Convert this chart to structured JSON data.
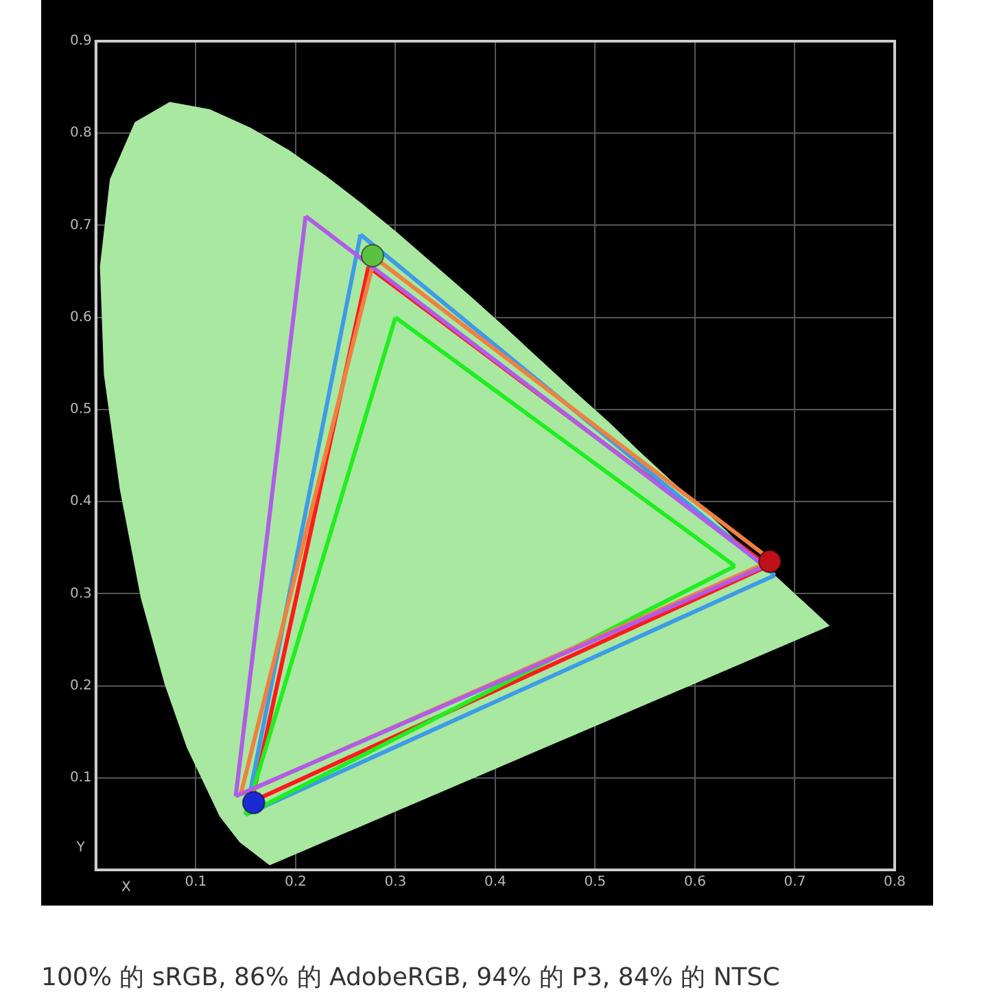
{
  "chart_data": {
    "type": "line",
    "xlabel": "X",
    "ylabel": "Y",
    "xlim": [
      0,
      0.8
    ],
    "ylim": [
      0,
      0.9
    ],
    "xticks": [
      0.1,
      0.2,
      0.3,
      0.4,
      0.5,
      0.6,
      0.7,
      0.8
    ],
    "yticks": [
      0.1,
      0.2,
      0.3,
      0.4,
      0.5,
      0.6,
      0.7,
      0.8,
      0.9
    ],
    "grid": true,
    "marker": "none",
    "line_style": "solid",
    "series": [
      {
        "type": "area",
        "color": "#a8e8a0",
        "x": [
          0.174,
          0.144,
          0.124,
          0.091,
          0.069,
          0.045,
          0.024,
          0.008,
          0.004,
          0.014,
          0.039,
          0.074,
          0.114,
          0.155,
          0.193,
          0.23,
          0.266,
          0.302,
          0.337,
          0.373,
          0.409,
          0.444,
          0.479,
          0.513,
          0.545,
          0.575,
          0.603,
          0.627,
          0.648,
          0.666,
          0.68,
          0.692,
          0.701,
          0.708,
          0.714,
          0.735,
          0.174
        ],
        "values": [
          0.005,
          0.03,
          0.058,
          0.133,
          0.201,
          0.295,
          0.413,
          0.538,
          0.655,
          0.75,
          0.812,
          0.834,
          0.826,
          0.806,
          0.782,
          0.754,
          0.724,
          0.692,
          0.659,
          0.625,
          0.59,
          0.555,
          0.52,
          0.487,
          0.454,
          0.424,
          0.397,
          0.373,
          0.351,
          0.334,
          0.32,
          0.308,
          0.299,
          0.292,
          0.286,
          0.265,
          0.005
        ]
      },
      {
        "color": "#b05ce8",
        "x": [
          0.14,
          0.21
        ],
        "values": [
          0.08,
          0.71
        ]
      },
      {
        "color": "#b05ce8",
        "x": [
          0.21,
          0.67
        ],
        "values": [
          0.71,
          0.33
        ]
      },
      {
        "color": "#b05ce8",
        "x": [
          0.14,
          0.67
        ],
        "values": [
          0.08,
          0.33
        ]
      },
      {
        "color": "#f08040",
        "x": [
          0.145,
          0.279
        ],
        "values": [
          0.082,
          0.665
        ]
      },
      {
        "color": "#f08040",
        "x": [
          0.279,
          0.677
        ],
        "values": [
          0.665,
          0.336
        ]
      },
      {
        "color": "#f08040",
        "x": [
          0.145,
          0.677
        ],
        "values": [
          0.082,
          0.336
        ]
      },
      {
        "color": "#20ee20",
        "x": [
          0.15,
          0.3
        ],
        "values": [
          0.06,
          0.6
        ]
      },
      {
        "color": "#20ee20",
        "x": [
          0.3,
          0.64
        ],
        "values": [
          0.6,
          0.33
        ]
      },
      {
        "color": "#20ee20",
        "x": [
          0.15,
          0.64
        ],
        "values": [
          0.06,
          0.33
        ]
      },
      {
        "color": "#3d9be8",
        "x": [
          0.15,
          0.265
        ],
        "values": [
          0.06,
          0.69
        ]
      },
      {
        "color": "#3d9be8",
        "x": [
          0.265,
          0.68
        ],
        "values": [
          0.69,
          0.32
        ]
      },
      {
        "color": "#3d9be8",
        "x": [
          0.15,
          0.68
        ],
        "values": [
          0.06,
          0.32
        ]
      },
      {
        "color": "#ff1a1a",
        "x": [
          0.156,
          0.273
        ],
        "values": [
          0.074,
          0.655
        ]
      },
      {
        "color": "#ff1a1a",
        "x": [
          0.273,
          0.673
        ],
        "values": [
          0.655,
          0.33
        ]
      },
      {
        "color": "#ff1a1a",
        "x": [
          0.156,
          0.673
        ],
        "values": [
          0.074,
          0.33
        ]
      },
      {
        "type": "scatter",
        "marker": "circle",
        "colors": [
          "#c0101a",
          "#5cc040",
          "#1a2ad0"
        ],
        "x": [
          0.675,
          0.277,
          0.158
        ],
        "values": [
          0.335,
          0.667,
          0.073
        ]
      }
    ],
    "annotations": [
      "100% 的 sRGB, 86% 的 AdobeRGB, 94% 的 P3, 84% 的 NTSC"
    ]
  }
}
